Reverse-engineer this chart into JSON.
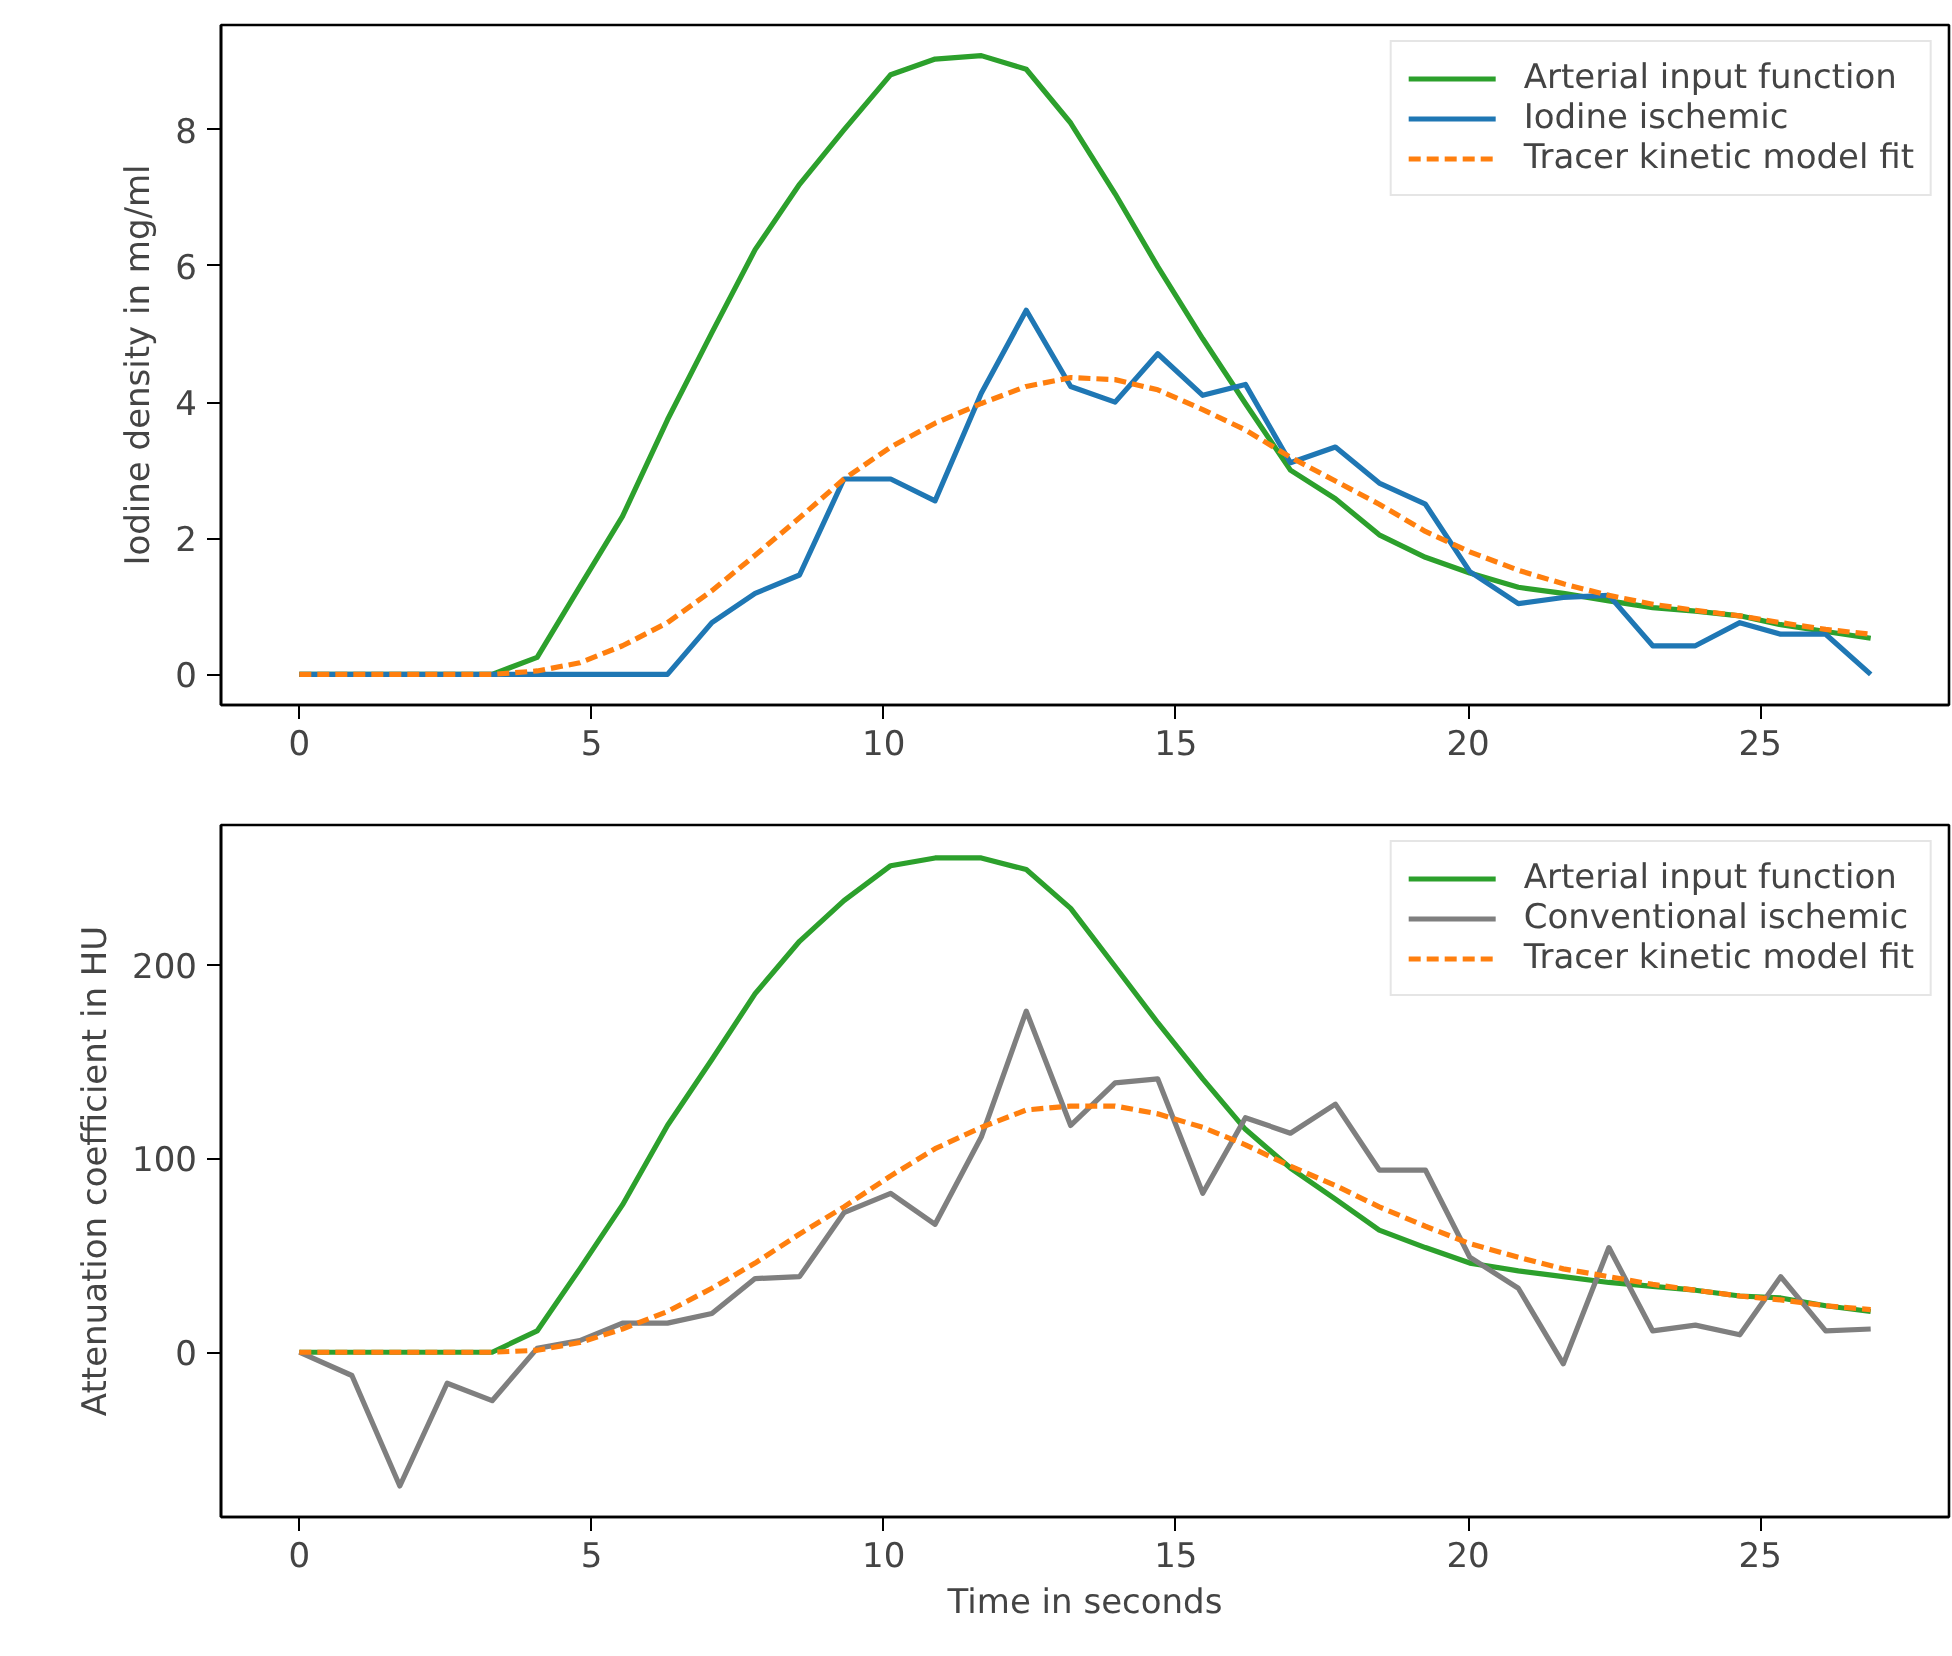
{
  "chart_data": [
    {
      "type": "line",
      "ylabel": "Iodine density in mg/ml",
      "legend": "top right",
      "grid": false,
      "x": [
        0,
        0.9,
        1.72,
        2.53,
        3.3,
        4.07,
        4.8,
        5.53,
        6.3,
        7.06,
        7.8,
        8.56,
        9.32,
        10.12,
        10.88,
        11.67,
        12.44,
        13.2,
        13.96,
        14.69,
        15.46,
        16.19,
        16.96,
        17.73,
        18.48,
        19.27,
        20.03,
        20.86,
        21.63,
        22.41,
        23.16,
        23.89,
        24.65,
        25.35,
        26.12,
        26.89
      ],
      "xlim": [
        -1.34,
        28.23
      ],
      "xticks": [
        0,
        5,
        10,
        15,
        20,
        25
      ],
      "ylim": [
        -0.45,
        9.54
      ],
      "yticks": [
        0,
        2,
        4,
        6,
        8
      ],
      "series": [
        {
          "name": "Arterial input function",
          "color": "#2ca02c",
          "line_style": "solid",
          "values": [
            0,
            0,
            0,
            0,
            0,
            0.25,
            1.29,
            2.32,
            3.74,
            5.02,
            6.24,
            7.2,
            8.0,
            8.81,
            9.04,
            9.09,
            8.89,
            8.1,
            7.06,
            5.99,
            4.93,
            3.98,
            3.0,
            2.58,
            2.05,
            1.72,
            1.49,
            1.28,
            1.19,
            1.08,
            0.98,
            0.93,
            0.86,
            0.73,
            0.63,
            0.53
          ]
        },
        {
          "name": "Iodine ischemic",
          "color": "#1f77b4",
          "line_style": "solid",
          "values": [
            0,
            0,
            0,
            0,
            0,
            0,
            0,
            0,
            0,
            0.76,
            1.19,
            1.46,
            2.87,
            2.87,
            2.55,
            4.13,
            5.35,
            4.23,
            4.0,
            4.71,
            4.1,
            4.26,
            3.11,
            3.34,
            2.81,
            2.5,
            1.51,
            1.04,
            1.13,
            1.16,
            0.42,
            0.42,
            0.76,
            0.59,
            0.59,
            0
          ]
        },
        {
          "name": "Tracer kinetic model fit",
          "color": "#ff7f0e",
          "line_style": "dashed",
          "values": [
            0,
            0,
            0,
            0,
            0,
            0.05,
            0.17,
            0.42,
            0.76,
            1.23,
            1.75,
            2.3,
            2.87,
            3.34,
            3.69,
            3.98,
            4.23,
            4.36,
            4.33,
            4.18,
            3.89,
            3.59,
            3.19,
            2.84,
            2.5,
            2.1,
            1.8,
            1.53,
            1.33,
            1.16,
            1.03,
            0.94,
            0.86,
            0.76,
            0.66,
            0.59
          ]
        }
      ]
    },
    {
      "type": "line",
      "xlabel": "Time in seconds",
      "ylabel": "Attenuation coefficient in HU",
      "legend": "top right",
      "grid": false,
      "x": [
        0,
        0.9,
        1.72,
        2.53,
        3.3,
        4.07,
        4.8,
        5.53,
        6.3,
        7.06,
        7.8,
        8.56,
        9.32,
        10.12,
        10.88,
        11.67,
        12.44,
        13.2,
        13.96,
        14.69,
        15.46,
        16.19,
        16.96,
        17.73,
        18.48,
        19.27,
        20.03,
        20.86,
        21.63,
        22.41,
        23.16,
        23.89,
        24.65,
        25.35,
        26.12,
        26.89
      ],
      "xlim": [
        -1.34,
        28.23
      ],
      "xticks": [
        0,
        5,
        10,
        15,
        20,
        25
      ],
      "ylim": [
        -85,
        272
      ],
      "yticks": [
        0,
        100,
        200
      ],
      "series": [
        {
          "name": "Arterial input function",
          "color": "#2ca02c",
          "line_style": "solid",
          "values": [
            0,
            0,
            0,
            0,
            0,
            11,
            43,
            76,
            117,
            151,
            185,
            212,
            233,
            251,
            255,
            255,
            249,
            229,
            199,
            170,
            141,
            115,
            95,
            79,
            63,
            54,
            46,
            42,
            39,
            36,
            34,
            32,
            29,
            28,
            24,
            21
          ]
        },
        {
          "name": "Conventional ischemic",
          "color": "#7f7f7f",
          "line_style": "solid",
          "values": [
            0,
            -12,
            -69,
            -16,
            -25,
            2,
            6,
            15,
            15,
            20,
            38,
            39,
            72,
            82,
            66,
            111,
            176,
            117,
            139,
            141,
            82,
            121,
            113,
            128,
            94,
            94,
            49,
            33,
            -6,
            54,
            11,
            14,
            9,
            39,
            11,
            12
          ]
        },
        {
          "name": "Tracer kinetic model fit",
          "color": "#ff7f0e",
          "line_style": "dashed",
          "values": [
            0,
            0,
            0,
            0,
            0,
            1,
            5,
            12,
            21,
            33,
            46,
            61,
            75,
            91,
            105,
            116,
            125,
            127,
            127,
            123,
            116,
            107,
            96,
            86,
            75,
            65,
            56,
            49,
            43,
            39,
            35,
            32,
            29,
            27,
            24,
            22
          ]
        }
      ]
    }
  ]
}
